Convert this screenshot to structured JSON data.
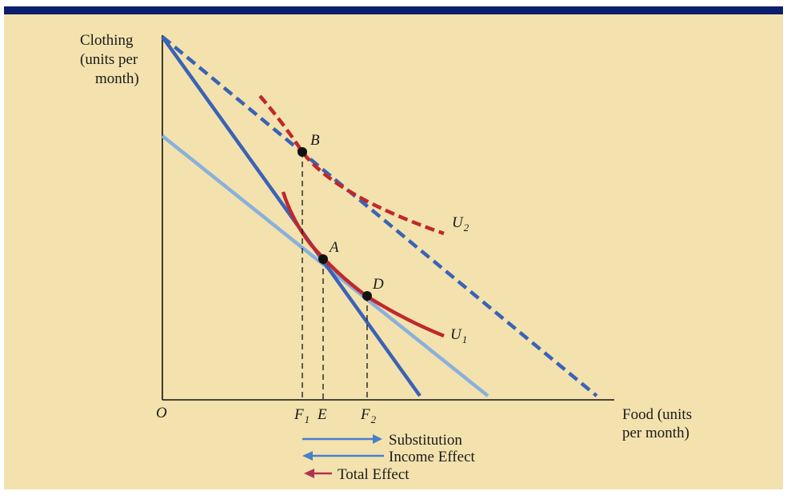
{
  "diagram": {
    "y_axis_label": [
      "Clothing",
      "(units per",
      "month)"
    ],
    "x_axis_label": [
      "Food (units",
      "per month)"
    ],
    "origin_label": "O",
    "points": {
      "A": "A",
      "B": "B",
      "D": "D"
    },
    "curves": {
      "U1": "U",
      "U1_sub": "1",
      "U2": "U",
      "U2_sub": "2"
    },
    "x_ticks": {
      "F1": "F",
      "F1_sub": "1",
      "E": "E",
      "F2": "F",
      "F2_sub": "2"
    },
    "legend": {
      "substitution": "Substitution",
      "income": "Income Effect",
      "total": "Total Effect"
    },
    "colors": {
      "background": "#f3e2ae",
      "top_bar": "#0a1e6e",
      "budget_line": "#3a63b6",
      "budget_line_light": "#8ab0db",
      "indifference_curve": "#c0282c",
      "legend_arrow_blue": "#4a7fc9",
      "legend_arrow_total": "#b2324e"
    }
  }
}
